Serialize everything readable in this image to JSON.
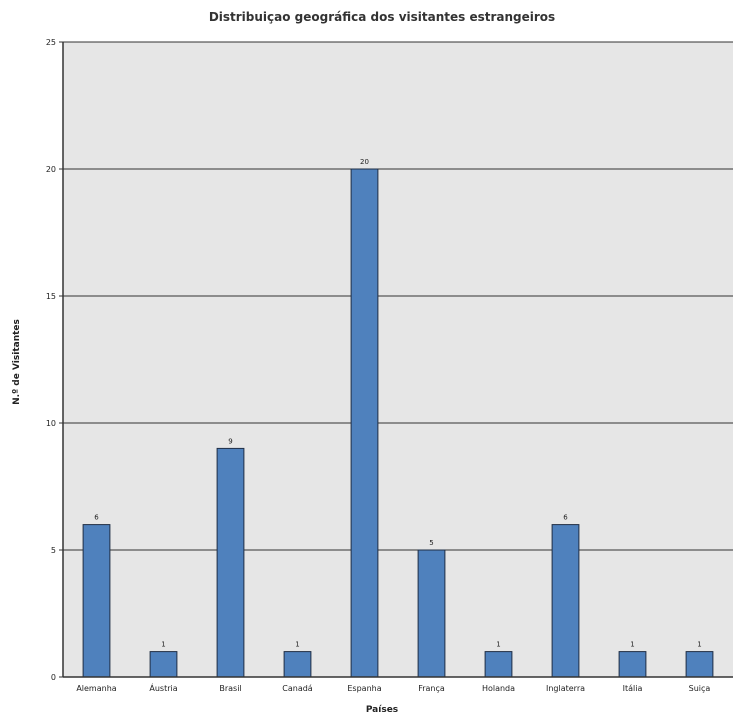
{
  "chart_data": {
    "type": "bar",
    "title": "Distribuiçao geográfica dos visitantes estrangeiros",
    "xlabel": "Países",
    "ylabel": "N.º de Visitantes",
    "categories": [
      "Alemanha",
      "Áustria",
      "Brasil",
      "Canadá",
      "Espanha",
      "França",
      "Holanda",
      "Inglaterra",
      "Itália",
      "Suiça"
    ],
    "values": [
      6,
      1,
      9,
      1,
      20,
      5,
      1,
      6,
      1,
      1
    ],
    "ylim": [
      0,
      25
    ],
    "yticks": [
      0,
      5,
      10,
      15,
      20,
      25
    ],
    "grid": true,
    "legend": "none",
    "colors": {
      "bar_fill": "#4f81bd",
      "bar_stroke": "#1f2d44",
      "plot_background": "#e6e6e6",
      "gridline": "#333333"
    }
  }
}
